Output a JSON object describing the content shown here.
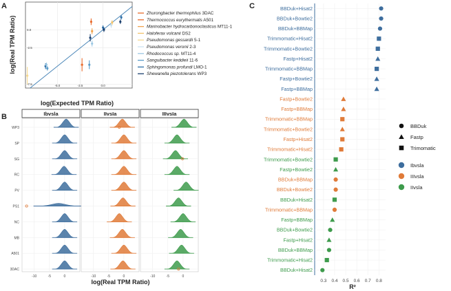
{
  "figure": {
    "panels": {
      "a": {
        "letter": "A"
      },
      "b": {
        "letter": "B"
      },
      "c": {
        "letter": "C"
      }
    }
  },
  "chart_data": [
    {
      "id": "A",
      "type": "scatter",
      "title": "",
      "xlabel": "log(Expected TPM Ratio)",
      "ylabel": "log(Real TPM Ratio)",
      "xlim": [
        -8.5,
        3.2
      ],
      "ylim": [
        -8.0,
        3.8
      ],
      "x_ticks": [
        -5.0,
        -2.5,
        0.0
      ],
      "x_tick_labels": [
        "-5.0",
        "-2.5",
        "0.0"
      ],
      "y_ticks": [
        -7.5,
        -2.5,
        0.0
      ],
      "y_tick_labels": [
        "-7.5",
        "-2.5",
        "0.0"
      ],
      "identity_line": true,
      "legend": [
        {
          "name": "Zhurongbacter thermophilus",
          "strain": "3DAC",
          "color": "#E8692A"
        },
        {
          "name": "Thermococcus eurythermalis",
          "strain": "A501",
          "color": "#E8692A"
        },
        {
          "name": "Marinobacter hydrocarbonoclasticus",
          "strain": "MT11-1",
          "color": "#F0A24A"
        },
        {
          "name": "Haloferax volcanii",
          "strain": "DS2",
          "color": "#F2C36A"
        },
        {
          "name": "Pseudomonas gessardii",
          "strain": "5-1",
          "color": "#F5D98F"
        },
        {
          "name": "Pseudomonas veronii",
          "strain": "2-3",
          "color": "#CDE3F0"
        },
        {
          "name": "Rhodococcus sp.",
          "strain": "MT11-4",
          "color": "#9CC8E3"
        },
        {
          "name": "Sanguibacter keddieii",
          "strain": "11-6",
          "color": "#5A9CC9"
        },
        {
          "name": "Sphingomonas profundi",
          "strain": "LMO-1",
          "color": "#2E6FA7"
        },
        {
          "name": "Shewanella piezotolerans",
          "strain": "WP3",
          "color": "#1B3F6E"
        }
      ],
      "points": [
        {
          "x": -6.3,
          "y": -5.0,
          "err": 0.4,
          "color": "#2E6FA7"
        },
        {
          "x": -6.1,
          "y": -5.3,
          "err": 0.3,
          "color": "#5A9CC9"
        },
        {
          "x": -2.3,
          "y": -4.8,
          "err": 0.9,
          "color": "#E8692A"
        },
        {
          "x": -1.5,
          "y": -4.8,
          "err": 0.6,
          "color": "#5A9CC9"
        },
        {
          "x": -1.4,
          "y": -1.1,
          "err": 0.5,
          "color": "#1B3F6E"
        },
        {
          "x": -1.3,
          "y": 1.1,
          "err": 0.45,
          "color": "#E8692A"
        },
        {
          "x": -1.2,
          "y": -0.2,
          "err": 0.4,
          "color": "#F0A24A"
        },
        {
          "x": -1.2,
          "y": -1.9,
          "err": 0.4,
          "color": "#9CC8E3"
        },
        {
          "x": 0.0,
          "y": 0.3,
          "err": 0.3,
          "color": "#2E6FA7"
        },
        {
          "x": 0.1,
          "y": 0.0,
          "err": 0.3,
          "color": "#1B3F6E"
        },
        {
          "x": 0.9,
          "y": 0.6,
          "err": 0.35,
          "color": "#CDE3F0"
        },
        {
          "x": 1.0,
          "y": 1.0,
          "err": 0.3,
          "color": "#F2C36A"
        },
        {
          "x": 1.9,
          "y": 1.1,
          "err": 0.3,
          "color": "#1B3F6E"
        },
        {
          "x": 2.0,
          "y": 1.7,
          "err": 0.3,
          "color": "#2E6FA7"
        },
        {
          "x": -8.3,
          "y": -6.3,
          "err": 1.2,
          "color": "#F5D98F"
        },
        {
          "x": -6.2,
          "y": -4.8,
          "err": 0.3,
          "color": "#9CC8E3"
        }
      ]
    },
    {
      "id": "B",
      "type": "density",
      "xlabel": "log(Real TPM Ratio)",
      "facets": [
        {
          "label": "Ibvsla",
          "color": "#3E6E9E",
          "xlim": [
            -14,
            5
          ]
        },
        {
          "label": "IIvsIa",
          "color": "#E07B39",
          "xlim": [
            -14,
            5
          ]
        },
        {
          "label": "IIIvsIa",
          "color": "#3E9B4C",
          "xlim": [
            -14,
            5
          ]
        }
      ],
      "x_ticks": [
        -10,
        -5,
        0
      ],
      "x_tick_labels": [
        "-10",
        "-5",
        "0"
      ],
      "rows": [
        "WP3",
        "SP",
        "SG",
        "RC",
        "PV",
        "PS1",
        "NC",
        "MB",
        "A501",
        "3DAC"
      ],
      "peaks": [
        [
          0.5,
          0.0,
          0.0,
          -0.2,
          0.0,
          -2.0,
          0.0,
          0.0,
          0.0,
          0.0
        ],
        [
          -0.5,
          0.0,
          0.0,
          0.0,
          0.0,
          -0.3,
          -1.5,
          -0.5,
          0.0,
          -0.3
        ],
        [
          0.3,
          -2.0,
          -2.5,
          -2.0,
          1.0,
          -1.5,
          0.0,
          -0.8,
          -0.5,
          -2.0
        ]
      ],
      "outliers": [
        [
          null,
          null,
          null,
          null,
          null,
          -12.5,
          null,
          null,
          null,
          null
        ],
        [
          -1.5,
          null,
          null,
          null,
          null,
          null,
          null,
          null,
          null,
          null
        ],
        [
          null,
          null,
          -0.2,
          null,
          null,
          null,
          null,
          null,
          null,
          -1.5
        ]
      ]
    },
    {
      "id": "C",
      "type": "dot",
      "xlabel": "R²",
      "xlim": [
        0.22,
        0.86
      ],
      "x_ticks": [
        0.3,
        0.4,
        0.5,
        0.6,
        0.7,
        0.8
      ],
      "x_tick_labels": [
        "0.3",
        "0.4",
        "0.5",
        "0.6",
        "0.7",
        "0.8"
      ],
      "legend_shapes": [
        {
          "label": "BBDuk",
          "shape": "circle"
        },
        {
          "label": "Fastp",
          "shape": "triangle"
        },
        {
          "label": "Trimomatic",
          "shape": "square"
        }
      ],
      "legend_colors": [
        {
          "label": "Ibvsla",
          "color": "#3E6E9E"
        },
        {
          "label": "IIIvsla",
          "color": "#E07B39"
        },
        {
          "label": "IIvsla",
          "color": "#3E9B4C"
        }
      ],
      "rows": [
        {
          "label": "BBDuk+Hisat2",
          "shape": "circle",
          "color": "#3E6E9E",
          "r2": 0.82
        },
        {
          "label": "BBDuk+Bowtie2",
          "shape": "circle",
          "color": "#3E6E9E",
          "r2": 0.82
        },
        {
          "label": "BBDuk+BBMap",
          "shape": "circle",
          "color": "#3E6E9E",
          "r2": 0.81
        },
        {
          "label": "Trimmomatic+Hisat2",
          "shape": "square",
          "color": "#3E6E9E",
          "r2": 0.8
        },
        {
          "label": "Trimmomatic+Bowtie2",
          "shape": "square",
          "color": "#3E6E9E",
          "r2": 0.79
        },
        {
          "label": "Fastp+Hisat2",
          "shape": "triangle",
          "color": "#3E6E9E",
          "r2": 0.79
        },
        {
          "label": "Trimmomatic+BBMap",
          "shape": "square",
          "color": "#3E6E9E",
          "r2": 0.78
        },
        {
          "label": "Fastp+Bowtie2",
          "shape": "triangle",
          "color": "#3E6E9E",
          "r2": 0.78
        },
        {
          "label": "Fastp+BBMap",
          "shape": "triangle",
          "color": "#3E6E9E",
          "r2": 0.78
        },
        {
          "label": "Fastp+Bowtie2",
          "shape": "triangle",
          "color": "#E07B39",
          "r2": 0.48
        },
        {
          "label": "Fastp+BBMap",
          "shape": "triangle",
          "color": "#E07B39",
          "r2": 0.48
        },
        {
          "label": "Trimmomatic+BBMap",
          "shape": "square",
          "color": "#E07B39",
          "r2": 0.47
        },
        {
          "label": "Trimmomatic+Bowtie2",
          "shape": "triangle",
          "color": "#E07B39",
          "r2": 0.47
        },
        {
          "label": "Fastp+Hisat2",
          "shape": "square",
          "color": "#E07B39",
          "r2": 0.47
        },
        {
          "label": "Trimmomatic+Hisat2",
          "shape": "square",
          "color": "#E07B39",
          "r2": 0.46
        },
        {
          "label": "Trimmomatic+Bowtie2",
          "shape": "square",
          "color": "#3E9B4C",
          "r2": 0.41
        },
        {
          "label": "Fastp+Bowtie2",
          "shape": "triangle",
          "color": "#3E9B4C",
          "r2": 0.41
        },
        {
          "label": "BBDuk+BBMap",
          "shape": "circle",
          "color": "#E07B39",
          "r2": 0.41
        },
        {
          "label": "BBDuk+Bowtie2",
          "shape": "circle",
          "color": "#E07B39",
          "r2": 0.41
        },
        {
          "label": "BBDuk+Hisat2",
          "shape": "square",
          "color": "#3E9B4C",
          "r2": 0.4
        },
        {
          "label": "Trimmomatic+BBMap",
          "shape": "circle",
          "color": "#E07B39",
          "r2": 0.4
        },
        {
          "label": "Fastp+BBMap",
          "shape": "triangle",
          "color": "#3E9B4C",
          "r2": 0.38
        },
        {
          "label": "BBDuk+Bowtie2",
          "shape": "circle",
          "color": "#3E9B4C",
          "r2": 0.36
        },
        {
          "label": "Fastp+Hisat2",
          "shape": "triangle",
          "color": "#3E9B4C",
          "r2": 0.35
        },
        {
          "label": "BBDuk+BBMap",
          "shape": "circle",
          "color": "#3E9B4C",
          "r2": 0.35
        },
        {
          "label": "Trimmomatic+Hisat2",
          "shape": "square",
          "color": "#3E9B4C",
          "r2": 0.33
        },
        {
          "label": "BBDuk+Hisat2",
          "shape": "circle",
          "color": "#3E9B4C",
          "r2": 0.29
        }
      ]
    }
  ]
}
